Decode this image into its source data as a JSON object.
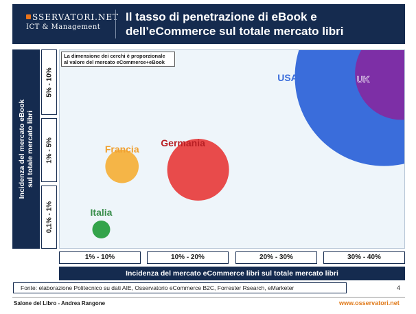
{
  "header": {
    "logo_top": "SSERVATORI.NET",
    "logo_sub": "ICT & Management",
    "title_line1": "Il tasso di penetrazione di eBook e",
    "title_line2": "dell’eCommerce sul totale mercato libri"
  },
  "chart_data": {
    "type": "scatter",
    "title": "Il tasso di penetrazione di eBook e dell’eCommerce sul totale mercato libri",
    "xlabel": "Incidenza del mercato eCommerce libri sul totale mercato libri",
    "ylabel_line1": "Incidenza del mercato eBook",
    "ylabel_line2": "sul totale mercato libri",
    "x_categories": [
      "1% - 10%",
      "10% - 20%",
      "20% - 30%",
      "30% - 40%"
    ],
    "y_categories": [
      "0,1% - 1%",
      "1% - 5%",
      "5% - 10%"
    ],
    "note_line1": "La dimensione dei cerchi è proporzionale",
    "note_line2": "al valore del mercato eCommerce+eBook",
    "points": [
      {
        "label": "USA",
        "x": 3.75,
        "y": 2.6,
        "size": 1.0,
        "color": "#3a6ddb",
        "label_color": "#3a6ddb"
      },
      {
        "label": "UK",
        "x": 3.95,
        "y": 2.65,
        "size": 0.27,
        "color": "#7d2fa6",
        "label_color": "#7d2fa6"
      },
      {
        "label": "Germania",
        "x": 1.6,
        "y": 1.2,
        "size": 0.12,
        "color": "#e84b4b",
        "label_color": "#b81f24"
      },
      {
        "label": "Francia",
        "x": 0.72,
        "y": 1.25,
        "size": 0.035,
        "color": "#f5b547",
        "label_color": "#f0a030"
      },
      {
        "label": "Italia",
        "x": 0.48,
        "y": 0.3,
        "size": 0.01,
        "color": "#33a34a",
        "label_color": "#3a8e4c"
      }
    ],
    "xlim": [
      0,
      4
    ],
    "ylim": [
      0,
      3
    ]
  },
  "footer": {
    "source": "Fonte: elaborazione Politecnico su dati AIE, Osservatorio eCommerce B2C, Forrester Rsearch, eMarketer",
    "page": "4",
    "left": "Salone del Libro - Andrea Rangone",
    "right": "www.osservatori.net"
  }
}
